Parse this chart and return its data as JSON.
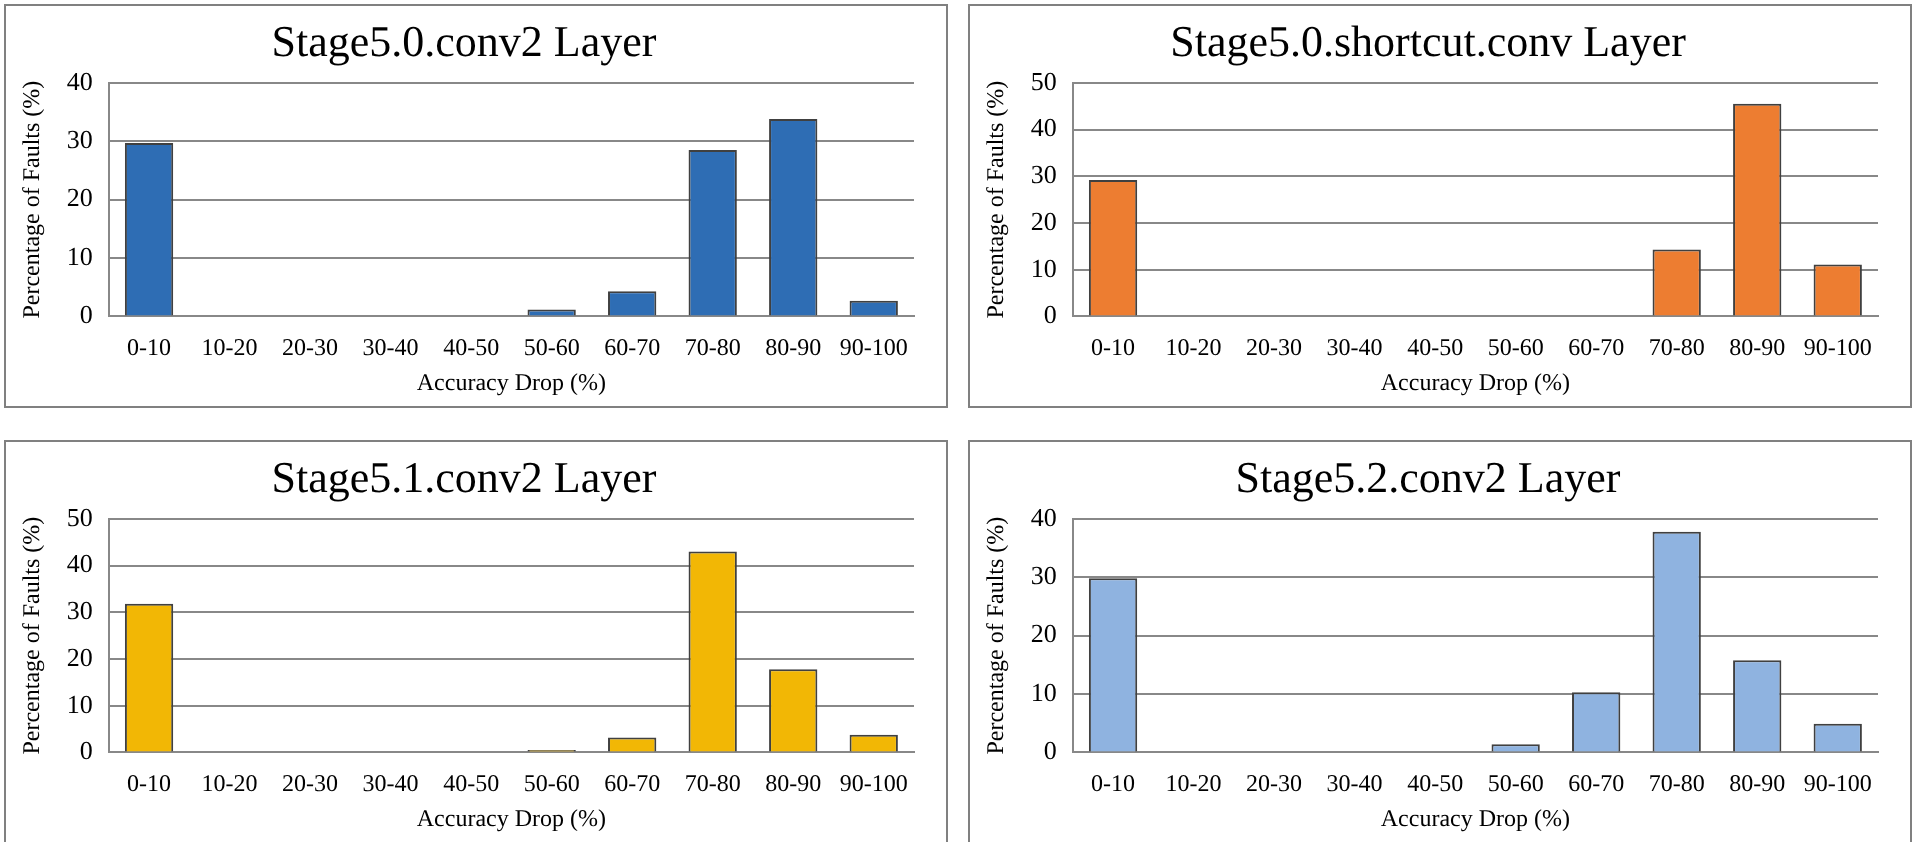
{
  "chart_data": [
    {
      "type": "bar",
      "title": "Stage5.0.conv2 Layer",
      "xlabel": "Accuracy Drop (%)",
      "ylabel": "Percentage of Faults (%)",
      "categories": [
        "0-10",
        "10-20",
        "20-30",
        "30-40",
        "40-50",
        "50-60",
        "60-70",
        "70-80",
        "80-90",
        "90-100"
      ],
      "values": [
        29.7,
        0,
        0,
        0,
        0,
        1.2,
        4.3,
        28.5,
        33.8,
        2.7
      ],
      "color": "#2e6db4",
      "ylim": [
        0,
        40
      ],
      "yticks": [
        0,
        10,
        20,
        30,
        40
      ],
      "grid": "y",
      "legend": false
    },
    {
      "type": "bar",
      "title": "Stage5.0.shortcut.conv Layer",
      "xlabel": "Accuracy Drop (%)",
      "ylabel": "Percentage of Faults (%)",
      "categories": [
        "0-10",
        "10-20",
        "20-30",
        "30-40",
        "40-50",
        "50-60",
        "60-70",
        "70-80",
        "80-90",
        "90-100"
      ],
      "values": [
        29.2,
        0,
        0,
        0,
        0,
        0,
        0.2,
        14.3,
        45.5,
        11.1
      ],
      "color": "#ed7d31",
      "ylim": [
        0,
        50
      ],
      "yticks": [
        0,
        10,
        20,
        30,
        40,
        50
      ],
      "grid": "y",
      "legend": false
    },
    {
      "type": "bar",
      "title": "Stage5.1.conv2 Layer",
      "xlabel": "Accuracy Drop (%)",
      "ylabel": "Percentage of Faults (%)",
      "categories": [
        "0-10",
        "10-20",
        "20-30",
        "30-40",
        "40-50",
        "50-60",
        "60-70",
        "70-80",
        "80-90",
        "90-100"
      ],
      "values": [
        31.8,
        0,
        0,
        0,
        0,
        0.5,
        3.2,
        43,
        17.8,
        3.8
      ],
      "color": "#f2b705",
      "ylim": [
        0,
        50
      ],
      "yticks": [
        0,
        10,
        20,
        30,
        40,
        50
      ],
      "grid": "y",
      "legend": false
    },
    {
      "type": "bar",
      "title": "Stage5.2.conv2 Layer",
      "xlabel": "Accuracy Drop (%)",
      "ylabel": "Percentage of Faults (%)",
      "categories": [
        "0-10",
        "10-20",
        "20-30",
        "30-40",
        "40-50",
        "50-60",
        "60-70",
        "70-80",
        "80-90",
        "90-100"
      ],
      "values": [
        29.8,
        0,
        0,
        0,
        0,
        1.4,
        10.3,
        37.8,
        15.8,
        4.9
      ],
      "color": "#8fb3e0",
      "ylim": [
        0,
        40
      ],
      "yticks": [
        0,
        10,
        20,
        30,
        40
      ],
      "grid": "y",
      "legend": false
    }
  ]
}
